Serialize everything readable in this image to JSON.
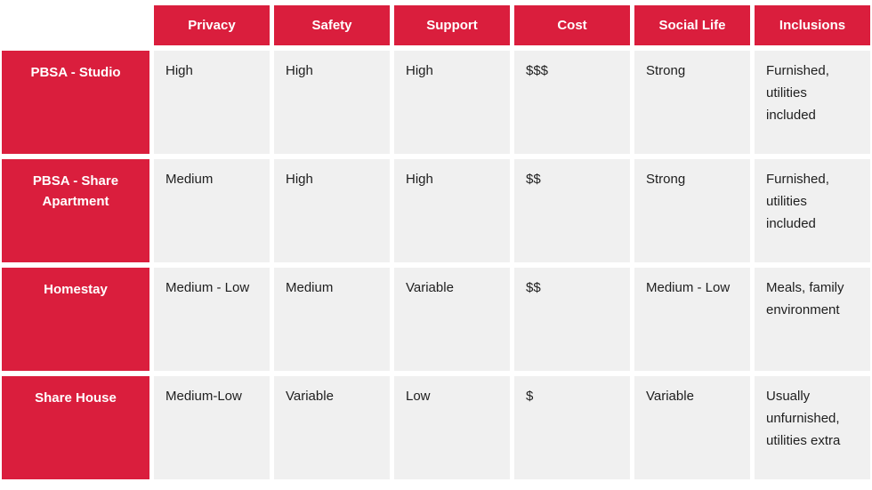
{
  "chart_data": {
    "type": "table",
    "columns": [
      "Privacy",
      "Safety",
      "Support",
      "Cost",
      "Social Life",
      "Inclusions"
    ],
    "rows": [
      {
        "header": "PBSA - Studio",
        "cells": [
          "High",
          "High",
          "High",
          "$$$",
          "Strong",
          "Furnished, utilities included"
        ]
      },
      {
        "header": "PBSA - Share Apartment",
        "cells": [
          "Medium",
          "High",
          "High",
          "$$",
          "Strong",
          "Furnished, utilities included"
        ]
      },
      {
        "header": "Homestay",
        "cells": [
          "Medium - Low",
          "Medium",
          "Variable",
          "$$",
          "Medium - Low",
          "Meals, family environment"
        ]
      },
      {
        "header": "Share House",
        "cells": [
          "Medium-Low",
          "Variable",
          "Low",
          "$",
          "Variable",
          "Usually unfurnished, utilities extra"
        ]
      }
    ]
  },
  "colors": {
    "header_bg": "#DA1E3D",
    "header_text": "#FFFFFF",
    "cell_bg": "#F0F0F0",
    "cell_text": "#1E1E1E",
    "background": "#FFFFFF"
  }
}
